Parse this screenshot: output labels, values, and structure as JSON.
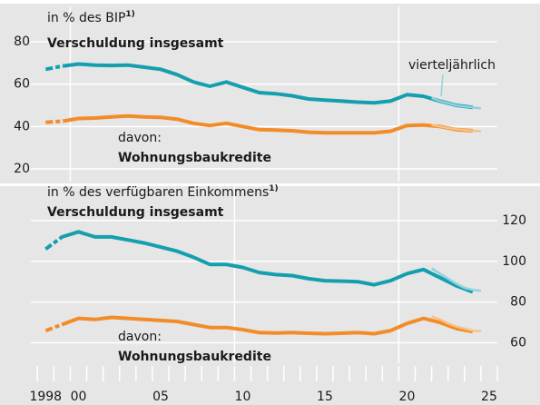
{
  "chart_data": [
    {
      "type": "line",
      "ylabel": "in % des BIP",
      "footnote": "1)",
      "yaxis_side": "left",
      "xlim": [
        1997.6,
        2026
      ],
      "ylim": [
        14,
        95
      ],
      "yticks": [
        20,
        40,
        60,
        80
      ],
      "xgrid": [
        2000,
        2020
      ],
      "x": [
        1998.5,
        1999.5,
        2000.5,
        2001.5,
        2002.5,
        2003.5,
        2004.5,
        2005.5,
        2006.5,
        2007.5,
        2008.5,
        2009.5,
        2010.5,
        2011.5,
        2012.5,
        2013.5,
        2014.5,
        2015.5,
        2016.5,
        2017.5,
        2018.5,
        2019.5,
        2020.5,
        2021.5,
        2022.5,
        2023.5,
        2024.5
      ],
      "series": [
        {
          "name": "Verschuldung insgesamt",
          "color": "#159fae",
          "values": [
            67,
            68.5,
            69.5,
            69,
            68.8,
            69,
            68,
            67,
            64.5,
            61,
            59,
            61,
            58.5,
            56,
            55.5,
            54.5,
            53,
            52.5,
            52,
            51.5,
            51.2,
            52,
            55,
            54.3,
            52,
            50,
            49
          ]
        },
        {
          "name": "Wohnungsbaukredite",
          "prefix": "davon:",
          "color": "#f28c28",
          "values": [
            42,
            42.5,
            43.8,
            44,
            44.5,
            45,
            44.5,
            44.3,
            43.5,
            41.5,
            40.5,
            41.5,
            40,
            38.5,
            38.3,
            38,
            37.3,
            37,
            37,
            37,
            37,
            37.8,
            40.5,
            40.7,
            40,
            38.5,
            38
          ]
        }
      ],
      "quarterly": {
        "label": "vierteljährlich",
        "x": [
          2022.0,
          2022.5,
          2023.0,
          2023.5,
          2024.0,
          2024.5,
          2025.0
        ],
        "series": [
          {
            "color": "#8fd3dc",
            "values": [
              53.5,
              52,
              51,
              50,
              49.5,
              49,
              48.5
            ]
          },
          {
            "color": "#f8c08a",
            "values": [
              40.8,
              40,
              39.3,
              38.7,
              38.3,
              38,
              37.8
            ]
          }
        ]
      }
    },
    {
      "type": "line",
      "ylabel": "in % des verfügbaren Einkommens",
      "footnote": "1)",
      "yaxis_side": "right",
      "xlim": [
        1997.6,
        2026
      ],
      "ylim": [
        50,
        136
      ],
      "yticks": [
        60,
        80,
        100,
        120
      ],
      "xgrid": [
        2010,
        2020
      ],
      "xticks": [
        {
          "value": 1998.5,
          "label": "1998"
        },
        {
          "value": 2000.5,
          "label": "00"
        },
        {
          "value": 2005.5,
          "label": "05"
        },
        {
          "value": 2010.5,
          "label": "10"
        },
        {
          "value": 2015.5,
          "label": "15"
        },
        {
          "value": 2020.5,
          "label": "20"
        },
        {
          "value": 2025.5,
          "label": "25"
        }
      ],
      "xminor": [
        1998,
        1999,
        2000,
        2001,
        2002,
        2003,
        2004,
        2005,
        2006,
        2007,
        2008,
        2009,
        2010,
        2011,
        2012,
        2013,
        2014,
        2015,
        2016,
        2017,
        2018,
        2019,
        2020,
        2021,
        2022,
        2023,
        2024,
        2025,
        2026
      ],
      "x": [
        1998.5,
        1999.5,
        2000.5,
        2001.5,
        2002.5,
        2003.5,
        2004.5,
        2005.5,
        2006.5,
        2007.5,
        2008.5,
        2009.5,
        2010.5,
        2011.5,
        2012.5,
        2013.5,
        2014.5,
        2015.5,
        2016.5,
        2017.5,
        2018.5,
        2019.5,
        2020.5,
        2021.5,
        2022.5,
        2023.5,
        2024.5
      ],
      "series": [
        {
          "name": "Verschuldung insgesamt",
          "color": "#159fae",
          "values": [
            106,
            112,
            114.5,
            112,
            112,
            110.5,
            109,
            107,
            105,
            102,
            98.5,
            98.5,
            97,
            94.5,
            93.5,
            93,
            91.5,
            90.5,
            90.3,
            90,
            88.5,
            90.5,
            94,
            96,
            92,
            88,
            85
          ]
        },
        {
          "name": "Wohnungsbaukredite",
          "prefix": "davon:",
          "color": "#f28c28",
          "values": [
            66,
            69,
            72,
            71.5,
            72.5,
            72,
            71.5,
            71,
            70.5,
            69,
            67.5,
            67.5,
            66.5,
            65,
            64.8,
            65,
            64.7,
            64.5,
            64.7,
            65,
            64.5,
            66,
            69.5,
            72,
            70,
            67,
            65.5
          ]
        }
      ],
      "quarterly": {
        "x": [
          2022.0,
          2022.5,
          2023.0,
          2023.5,
          2024.0,
          2024.5,
          2025.0
        ],
        "series": [
          {
            "color": "#8fd3dc",
            "values": [
              96.5,
              94,
              91.5,
              89,
              87,
              86,
              85.5
            ]
          },
          {
            "color": "#f8c08a",
            "values": [
              73,
              71.5,
              69.5,
              68,
              67,
              66,
              65.8
            ]
          }
        ]
      }
    }
  ]
}
